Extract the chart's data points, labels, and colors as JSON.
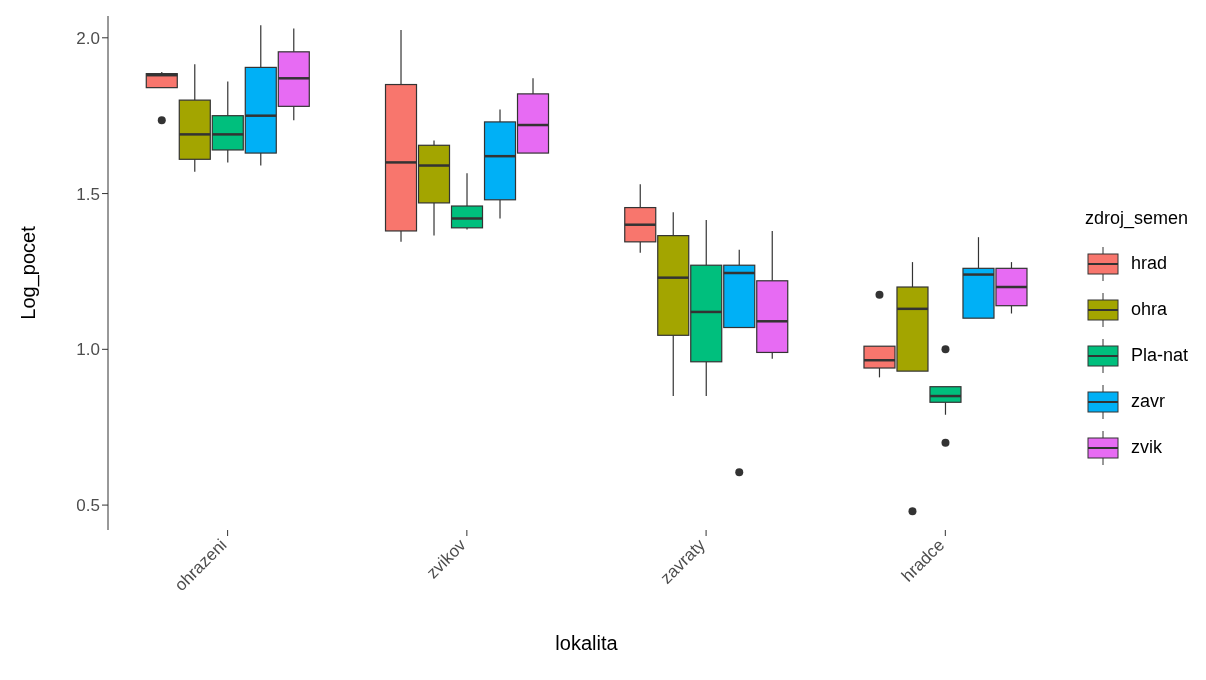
{
  "chart_data": {
    "type": "box",
    "xlabel": "lokalita",
    "ylabel": "Log_pocet",
    "legend_title": "zdroj_semen",
    "legend": "right",
    "grid": false,
    "categories": [
      "ohrazeni",
      "zvikov",
      "zavraty",
      "hradce"
    ],
    "ylim": [
      0.42,
      2.07
    ],
    "yticks": [
      0.5,
      {
        "value": 1,
        "label": "1.0"
      },
      1.5,
      {
        "value": 2,
        "label": "2.0"
      }
    ],
    "series": [
      {
        "name": "hrad",
        "color": "#f8766d",
        "boxes": [
          {
            "low": 1.84,
            "q1": 1.84,
            "median": 1.88,
            "q3": 1.885,
            "high": 1.89,
            "outliers": [
              1.735
            ]
          },
          {
            "low": 1.345,
            "q1": 1.38,
            "median": 1.6,
            "q3": 1.85,
            "high": 2.025
          },
          {
            "low": 1.31,
            "q1": 1.345,
            "median": 1.4,
            "q3": 1.455,
            "high": 1.53
          },
          {
            "low": 0.91,
            "q1": 0.94,
            "median": 0.965,
            "q3": 1.01,
            "high": 1.01,
            "outliers": [
              1.175
            ]
          }
        ]
      },
      {
        "name": "ohra",
        "color": "#a3a500",
        "boxes": [
          {
            "low": 1.57,
            "q1": 1.61,
            "median": 1.69,
            "q3": 1.8,
            "high": 1.915
          },
          {
            "low": 1.365,
            "q1": 1.47,
            "median": 1.59,
            "q3": 1.655,
            "high": 1.67
          },
          {
            "low": 0.85,
            "q1": 1.045,
            "median": 1.23,
            "q3": 1.365,
            "high": 1.44
          },
          {
            "low": 0.93,
            "q1": 0.93,
            "median": 1.13,
            "q3": 1.2,
            "high": 1.28,
            "outliers": [
              0.48
            ]
          }
        ]
      },
      {
        "name": "Pla-nat",
        "color": "#00bf7d",
        "boxes": [
          {
            "low": 1.6,
            "q1": 1.64,
            "median": 1.69,
            "q3": 1.75,
            "high": 1.86
          },
          {
            "low": 1.385,
            "q1": 1.39,
            "median": 1.42,
            "q3": 1.46,
            "high": 1.565
          },
          {
            "low": 0.85,
            "q1": 0.96,
            "median": 1.12,
            "q3": 1.27,
            "high": 1.415
          },
          {
            "low": 0.79,
            "q1": 0.83,
            "median": 0.85,
            "q3": 0.88,
            "high": 0.88,
            "outliers": [
              1.0,
              0.7
            ]
          }
        ]
      },
      {
        "name": "zavr",
        "color": "#00b0f6",
        "boxes": [
          {
            "low": 1.59,
            "q1": 1.63,
            "median": 1.75,
            "q3": 1.905,
            "high": 2.04
          },
          {
            "low": 1.42,
            "q1": 1.48,
            "median": 1.62,
            "q3": 1.73,
            "high": 1.77
          },
          {
            "low": 1.07,
            "q1": 1.07,
            "median": 1.245,
            "q3": 1.27,
            "high": 1.32,
            "outliers": [
              0.605
            ]
          },
          {
            "low": 1.1,
            "q1": 1.1,
            "median": 1.24,
            "q3": 1.26,
            "high": 1.36
          }
        ]
      },
      {
        "name": "zvik",
        "color": "#e76bf3",
        "boxes": [
          {
            "low": 1.735,
            "q1": 1.78,
            "median": 1.87,
            "q3": 1.955,
            "high": 2.03
          },
          {
            "low": 1.63,
            "q1": 1.63,
            "median": 1.72,
            "q3": 1.82,
            "high": 1.87
          },
          {
            "low": 0.97,
            "q1": 0.99,
            "median": 1.09,
            "q3": 1.22,
            "high": 1.38
          },
          {
            "low": 1.115,
            "q1": 1.14,
            "median": 1.2,
            "q3": 1.26,
            "high": 1.28
          }
        ]
      }
    ]
  }
}
